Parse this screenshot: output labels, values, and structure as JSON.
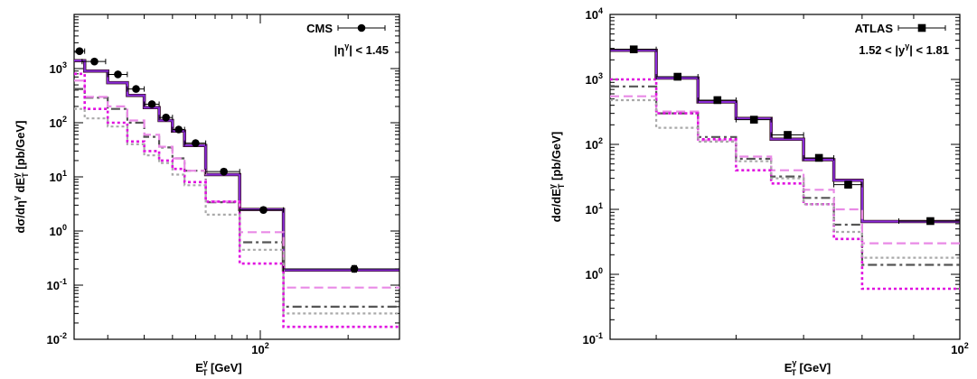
{
  "chart_data": [
    {
      "type": "line",
      "experiment": "CMS",
      "selection": "|η",
      "selection_sup": "γ",
      "selection_tail": "| < 1.45",
      "xlabel": "E",
      "xlabel_sub": "T",
      "xlabel_sup": "γ",
      "xlabel_unit": "[GeV]",
      "ylabel": "dσ/dη",
      "ylabel_sup": "γ",
      "ylabel_mid": "dE",
      "ylabel_sub2": "T",
      "ylabel_sup2": "γ",
      "ylabel_unit": "[pb/GeV]",
      "xscale": "log",
      "yscale": "log",
      "xlim": [
        23,
        300
      ],
      "ylim": [
        0.01,
        10000
      ],
      "legend_placement": "top-right",
      "x_ticks": [
        {
          "value": 100,
          "base": "10",
          "exp": "2"
        }
      ],
      "y_ticks": [
        {
          "value": 0.01,
          "base": "10",
          "exp": "-2"
        },
        {
          "value": 0.1,
          "base": "10",
          "exp": "-1"
        },
        {
          "value": 1,
          "base": "10",
          "exp": "0"
        },
        {
          "value": 10,
          "base": "10",
          "exp": "1"
        },
        {
          "value": 100,
          "base": "10",
          "exp": "2"
        },
        {
          "value": 1000,
          "base": "10",
          "exp": "3"
        }
      ],
      "bin_edges": [
        23,
        25,
        30,
        35,
        40,
        45,
        50,
        55,
        65,
        85,
        120,
        300
      ],
      "series": [
        {
          "color": "#2b0a0a",
          "style": "solid",
          "width": 3.5,
          "values": [
            1400,
            900,
            550,
            320,
            190,
            110,
            70,
            38,
            11,
            2.5,
            0.19
          ]
        },
        {
          "color": "#8a2bd8",
          "style": "solid",
          "width": 2.2,
          "values": [
            1400,
            900,
            550,
            320,
            190,
            110,
            70,
            38,
            11,
            2.5,
            0.19
          ]
        },
        {
          "color": "#555555",
          "style": "dashdot",
          "width": 2.2,
          "values": [
            420,
            290,
            180,
            100,
            55,
            35,
            22,
            13,
            3.4,
            0.62,
            0.04
          ]
        },
        {
          "color": "#e98ae6",
          "style": "dashed",
          "width": 2.2,
          "values": [
            600,
            300,
            200,
            110,
            60,
            36,
            22,
            13,
            3.5,
            0.95,
            0.09
          ]
        },
        {
          "color": "#e010e0",
          "style": "dotted",
          "width": 2.6,
          "values": [
            800,
            180,
            100,
            45,
            30,
            20,
            14,
            8,
            3.5,
            0.25,
            0.017
          ]
        },
        {
          "color": "#aaaaaa",
          "style": "dotted",
          "width": 2.2,
          "values": [
            180,
            120,
            85,
            40,
            25,
            18,
            11,
            7,
            2.0,
            0.45,
            0.03
          ]
        }
      ],
      "points": {
        "marker": "circle",
        "x": [
          24,
          27,
          32.5,
          37.5,
          42.5,
          47.5,
          52.5,
          60,
          75,
          102.5,
          210
        ],
        "xerr": [
          1,
          2.5,
          2.5,
          2.5,
          2.5,
          2.5,
          2.5,
          5,
          10,
          17.5,
          90
        ],
        "y": [
          2100,
          1350,
          780,
          420,
          220,
          125,
          75,
          42,
          12.5,
          2.45,
          0.2
        ],
        "yerr": [
          0.1,
          0.1,
          0.1,
          0.1,
          0.1,
          0.1,
          0.1,
          0.1,
          0.12,
          0.12,
          0.15
        ]
      }
    },
    {
      "type": "line",
      "experiment": "ATLAS",
      "selection": "1.52 < |y",
      "selection_sup": "γ",
      "selection_tail": "| < 1.81",
      "xlabel": "E",
      "xlabel_sub": "T",
      "xlabel_sup": "γ",
      "xlabel_unit": "[GeV]",
      "ylabel": "dσ/dE",
      "ylabel_sub2": "T",
      "ylabel_sup2": "γ",
      "ylabel_unit": "[pb/GeV]",
      "xscale": "log",
      "yscale": "log",
      "xlim": [
        45,
        100
      ],
      "ylim": [
        0.1,
        10000
      ],
      "legend_placement": "top-right",
      "x_ticks": [
        {
          "value": 100,
          "base": "10",
          "exp": "2"
        }
      ],
      "y_ticks": [
        {
          "value": 0.1,
          "base": "10",
          "exp": "-1"
        },
        {
          "value": 1,
          "base": "10",
          "exp": "0"
        },
        {
          "value": 10,
          "base": "10",
          "exp": "1"
        },
        {
          "value": 100,
          "base": "10",
          "exp": "2"
        },
        {
          "value": 1000,
          "base": "10",
          "exp": "3"
        },
        {
          "value": 10000,
          "base": "10",
          "exp": "4"
        }
      ],
      "bin_edges": [
        45,
        50,
        55,
        60,
        65,
        70,
        75,
        80,
        87,
        100
      ],
      "series": [
        {
          "color": "#2b0a0a",
          "style": "solid",
          "width": 3.5,
          "values": [
            2800,
            1050,
            450,
            250,
            120,
            58,
            28,
            6.5,
            6.5
          ]
        },
        {
          "color": "#8a2bd8",
          "style": "solid",
          "width": 2.2,
          "values": [
            2800,
            1050,
            450,
            250,
            120,
            58,
            28,
            6.5,
            6.5
          ]
        },
        {
          "color": "#555555",
          "style": "dashdot",
          "width": 2.2,
          "values": [
            780,
            300,
            130,
            60,
            32,
            15,
            5.8,
            1.4,
            1.4
          ]
        },
        {
          "color": "#e98ae6",
          "style": "dashed",
          "width": 2.2,
          "values": [
            550,
            320,
            115,
            65,
            40,
            20,
            10,
            3.0,
            3.0
          ]
        },
        {
          "color": "#e010e0",
          "style": "dotted",
          "width": 2.6,
          "values": [
            1000,
            300,
            120,
            40,
            25,
            12,
            3.5,
            0.6,
            0.6
          ]
        },
        {
          "color": "#aaaaaa",
          "style": "dotted",
          "width": 2.2,
          "values": [
            480,
            180,
            110,
            55,
            30,
            12,
            4.5,
            1.8,
            1.8
          ]
        }
      ],
      "points": {
        "marker": "square",
        "x": [
          47.5,
          52.5,
          57.5,
          62.5,
          67.5,
          72.5,
          77.5,
          93.5
        ],
        "xerr": [
          2.5,
          2.5,
          2.5,
          2.5,
          2.5,
          2.5,
          2.5,
          6.5
        ],
        "y": [
          2900,
          1100,
          480,
          240,
          140,
          62,
          24,
          6.6
        ],
        "yerr": [
          0.12,
          0.12,
          0.12,
          0.12,
          0.12,
          0.1,
          0.13,
          0.1
        ]
      }
    }
  ]
}
